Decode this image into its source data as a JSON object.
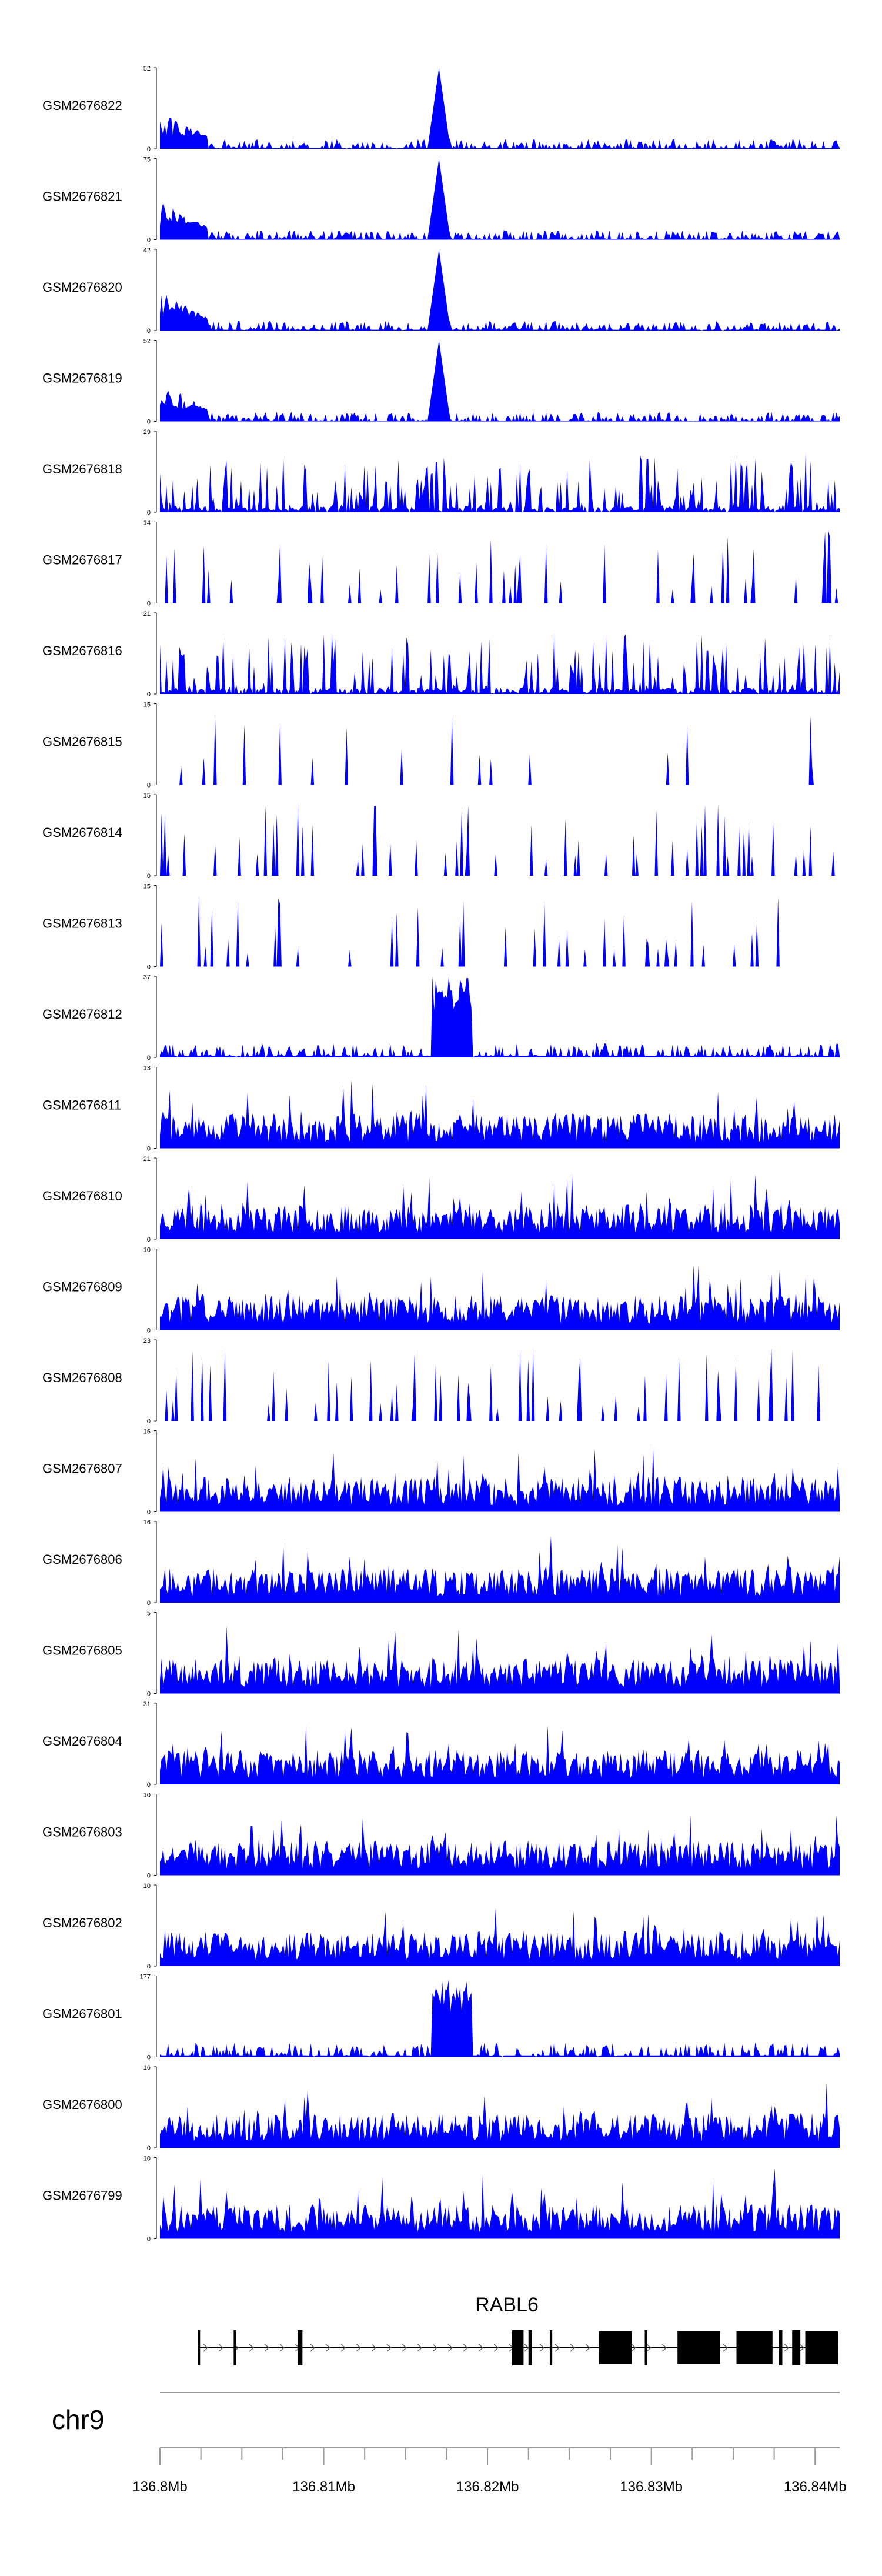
{
  "chart_data": {
    "type": "area",
    "fill_color": "#0000ff",
    "chromosome": "chr9",
    "x_range_bp": [
      136800000,
      136841500
    ],
    "tracks": [
      {
        "name": "GSM2676822",
        "ymax": "52",
        "ymax_value": 52,
        "profile": "peak",
        "seed": 11
      },
      {
        "name": "GSM2676821",
        "ymax": "75",
        "ymax_value": 75,
        "profile": "peak",
        "seed": 12
      },
      {
        "name": "GSM2676820",
        "ymax": "42",
        "ymax_value": 42,
        "profile": "peak",
        "seed": 13
      },
      {
        "name": "GSM2676819",
        "ymax": "52",
        "ymax_value": 52,
        "profile": "peak",
        "seed": 14
      },
      {
        "name": "GSM2676818",
        "ymax": "29",
        "ymax_value": 29,
        "profile": "busy",
        "seed": 15
      },
      {
        "name": "GSM2676817",
        "ymax": "14",
        "ymax_value": 14,
        "profile": "sparse",
        "seed": 16
      },
      {
        "name": "GSM2676816",
        "ymax": "21",
        "ymax_value": 21,
        "profile": "busy",
        "seed": 17
      },
      {
        "name": "GSM2676815",
        "ymax": "15",
        "ymax_value": 15,
        "profile": "verysparse",
        "seed": 18
      },
      {
        "name": "GSM2676814",
        "ymax": "15",
        "ymax_value": 15,
        "profile": "sparse",
        "seed": 19
      },
      {
        "name": "GSM2676813",
        "ymax": "15",
        "ymax_value": 15,
        "profile": "sparse",
        "seed": 20
      },
      {
        "name": "GSM2676812",
        "ymax": "37",
        "ymax_value": 37,
        "profile": "broadpeak",
        "seed": 21
      },
      {
        "name": "GSM2676811",
        "ymax": "13",
        "ymax_value": 13,
        "profile": "dense",
        "seed": 22
      },
      {
        "name": "GSM2676810",
        "ymax": "21",
        "ymax_value": 21,
        "profile": "dense",
        "seed": 23
      },
      {
        "name": "GSM2676809",
        "ymax": "10",
        "ymax_value": 10,
        "profile": "dense",
        "seed": 24
      },
      {
        "name": "GSM2676808",
        "ymax": "23",
        "ymax_value": 23,
        "profile": "sparse",
        "seed": 25
      },
      {
        "name": "GSM2676807",
        "ymax": "16",
        "ymax_value": 16,
        "profile": "dense",
        "seed": 26
      },
      {
        "name": "GSM2676806",
        "ymax": "16",
        "ymax_value": 16,
        "profile": "dense",
        "seed": 27
      },
      {
        "name": "GSM2676805",
        "ymax": "5",
        "ymax_value": 5,
        "profile": "dense",
        "seed": 28
      },
      {
        "name": "GSM2676804",
        "ymax": "31",
        "ymax_value": 31,
        "profile": "dense",
        "seed": 29
      },
      {
        "name": "GSM2676803",
        "ymax": "10",
        "ymax_value": 10,
        "profile": "dense",
        "seed": 30
      },
      {
        "name": "GSM2676802",
        "ymax": "10",
        "ymax_value": 10,
        "profile": "dense",
        "seed": 31
      },
      {
        "name": "GSM2676801",
        "ymax": "177",
        "ymax_value": 177,
        "profile": "broadpeak",
        "seed": 32
      },
      {
        "name": "GSM2676800",
        "ymax": "16",
        "ymax_value": 16,
        "profile": "dense",
        "seed": 33
      },
      {
        "name": "GSM2676799",
        "ymax": "10",
        "ymax_value": 10,
        "profile": "dense",
        "seed": 34
      }
    ],
    "y_zero_label": "0",
    "gene": {
      "name": "RABL6",
      "strand": "+",
      "exons_bp": [
        [
          136802300,
          136802450
        ],
        [
          136804500,
          136804650
        ],
        [
          136808400,
          136808700
        ],
        [
          136821500,
          136822200
        ],
        [
          136822500,
          136822700
        ],
        [
          136823800,
          136823950
        ],
        [
          136826800,
          136828800
        ],
        [
          136829600,
          136829750
        ],
        [
          136831600,
          136834200
        ],
        [
          136835200,
          136837400
        ],
        [
          136837800,
          136838000
        ],
        [
          136838600,
          136839100
        ],
        [
          136839400,
          136841400
        ]
      ]
    },
    "x_ticks": [
      {
        "label": "136.8Mb",
        "bp": 136800000
      },
      {
        "label": "136.81Mb",
        "bp": 136810000
      },
      {
        "label": "136.82Mb",
        "bp": 136820000
      },
      {
        "label": "136.83Mb",
        "bp": 136830000
      },
      {
        "label": "136.84Mb",
        "bp": 136840000
      }
    ],
    "minor_tick_step_bp": 2500
  }
}
